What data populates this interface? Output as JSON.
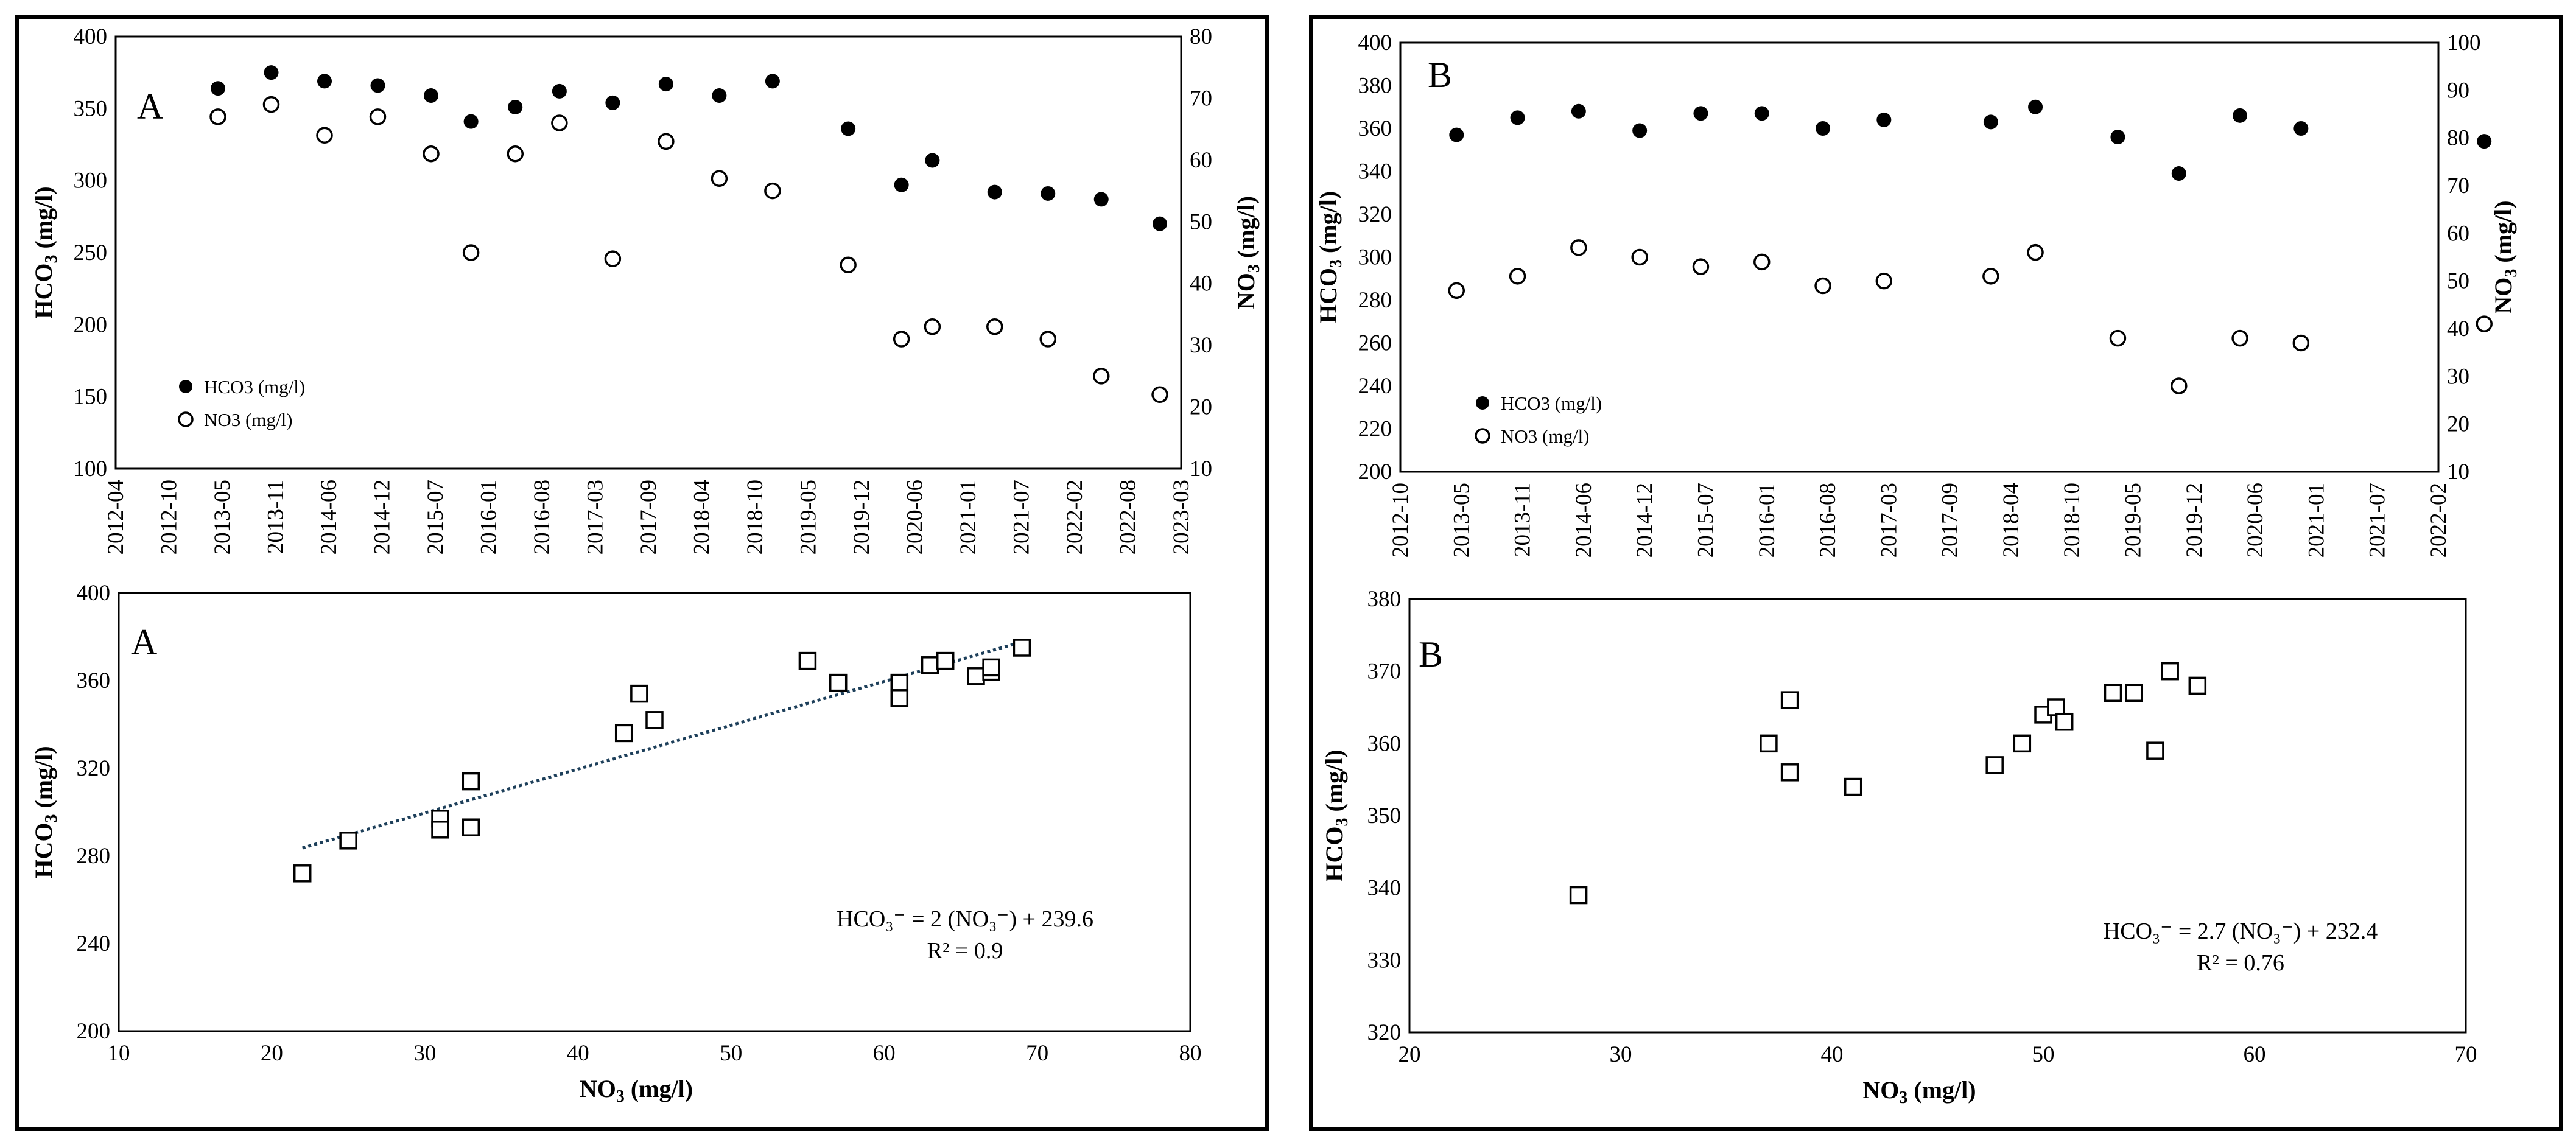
{
  "panels": [
    {
      "id": "A",
      "time_series": {
        "type": "scatter",
        "panel_label": "A",
        "x_labels": [
          "2012-04",
          "2012-10",
          "2013-05",
          "2013-11",
          "2014-06",
          "2014-12",
          "2015-07",
          "2016-01",
          "2016-08",
          "2017-03",
          "2017-09",
          "2018-04",
          "2018-10",
          "2019-05",
          "2019-12",
          "2020-06",
          "2021-01",
          "2021-07",
          "2022-02",
          "2022-08",
          "2023-03"
        ],
        "y_left": {
          "label": "HCO",
          "sub": "3",
          "unit": " (mg/l)",
          "min": 100,
          "max": 400,
          "step": 50
        },
        "y_right": {
          "label": "NO",
          "sub": "3",
          "unit": " (mg/l)",
          "min": 10,
          "max": 80,
          "step": 10
        },
        "series": [
          {
            "name": "HCO3 (mg/l)",
            "axis": "left",
            "marker": "filled",
            "points": [
              [
                1.92,
                364
              ],
              [
                2.92,
                375
              ],
              [
                3.92,
                369
              ],
              [
                4.92,
                366
              ],
              [
                5.92,
                359
              ],
              [
                6.67,
                341
              ],
              [
                7.5,
                351
              ],
              [
                8.33,
                362
              ],
              [
                9.33,
                354
              ],
              [
                10.33,
                367
              ],
              [
                11.33,
                359
              ],
              [
                12.33,
                369
              ],
              [
                13.75,
                336
              ],
              [
                14.75,
                297
              ],
              [
                15.33,
                314
              ],
              [
                16.5,
                292
              ],
              [
                17.5,
                291
              ],
              [
                18.5,
                287
              ],
              [
                19.6,
                270
              ]
            ]
          },
          {
            "name": "NO3 (mg/l)",
            "axis": "right",
            "marker": "open",
            "points": [
              [
                1.92,
                67
              ],
              [
                2.92,
                69
              ],
              [
                3.92,
                64
              ],
              [
                4.92,
                67
              ],
              [
                5.92,
                61
              ],
              [
                6.67,
                45
              ],
              [
                7.5,
                61
              ],
              [
                8.33,
                66
              ],
              [
                9.33,
                44
              ],
              [
                10.33,
                63
              ],
              [
                11.33,
                57
              ],
              [
                12.33,
                55
              ],
              [
                13.75,
                43
              ],
              [
                14.75,
                31
              ],
              [
                15.33,
                33
              ],
              [
                16.5,
                33
              ],
              [
                17.5,
                31
              ],
              [
                18.5,
                25
              ],
              [
                19.6,
                22
              ]
            ]
          }
        ],
        "legend": [
          "HCO3 (mg/l)",
          "NO3 (mg/l)"
        ]
      },
      "regression": {
        "type": "scatter",
        "panel_label": "A",
        "xlabel": "NO",
        "xlabel_sub": "3",
        "xlabel_unit": " (mg/l)",
        "ylabel": "HCO",
        "ylabel_sub": "3",
        "ylabel_unit": " (mg/l)",
        "xlim": [
          10,
          80
        ],
        "x_step": 10,
        "ylim": [
          200,
          400
        ],
        "y_step": 40,
        "points": [
          [
            22,
            272
          ],
          [
            25,
            287
          ],
          [
            31,
            297
          ],
          [
            31,
            292
          ],
          [
            33,
            314
          ],
          [
            33,
            293
          ],
          [
            43,
            336
          ],
          [
            44,
            354
          ],
          [
            45,
            342
          ],
          [
            55,
            369
          ],
          [
            57,
            359
          ],
          [
            61,
            359
          ],
          [
            61,
            352
          ],
          [
            63,
            367
          ],
          [
            64,
            369
          ],
          [
            66,
            362
          ],
          [
            67,
            364
          ],
          [
            67,
            366
          ],
          [
            69,
            375
          ]
        ],
        "trendline": {
          "slope": 2,
          "intercept": 239.6,
          "x_from": 22,
          "x_to": 69
        },
        "equation": "HCO₃⁻ = 2 (NO₃⁻) + 239.6",
        "r2": "R² = 0.9"
      }
    },
    {
      "id": "B",
      "time_series": {
        "type": "scatter",
        "panel_label": "B",
        "x_labels": [
          "2012-10",
          "2013-05",
          "2013-11",
          "2014-06",
          "2014-12",
          "2015-07",
          "2016-01",
          "2016-08",
          "2017-03",
          "2017-09",
          "2018-04",
          "2018-10",
          "2019-05",
          "2019-12",
          "2020-06",
          "2021-01",
          "2021-07",
          "2022-02"
        ],
        "y_left": {
          "label": "HCO",
          "sub": "3",
          "unit": " (mg/l)",
          "min": 200,
          "max": 400,
          "step": 20
        },
        "y_right": {
          "label": "NO",
          "sub": "3",
          "unit": " (mg/l)",
          "min": 10,
          "max": 100,
          "step": 10
        },
        "series": [
          {
            "name": "HCO3 (mg/l)",
            "axis": "left",
            "marker": "filled",
            "points": [
              [
                0.92,
                357
              ],
              [
                1.92,
                365
              ],
              [
                2.92,
                368
              ],
              [
                3.92,
                359
              ],
              [
                4.92,
                367
              ],
              [
                5.92,
                367
              ],
              [
                6.92,
                360
              ],
              [
                7.92,
                364
              ],
              [
                9.67,
                363
              ],
              [
                10.4,
                370
              ],
              [
                11.75,
                356
              ],
              [
                12.75,
                339
              ],
              [
                13.75,
                366
              ],
              [
                14.75,
                360
              ],
              [
                17.75,
                354
              ]
            ]
          },
          {
            "name": "NO3 (mg/l)",
            "axis": "right",
            "marker": "open",
            "points": [
              [
                0.92,
                48
              ],
              [
                1.92,
                51
              ],
              [
                2.92,
                57
              ],
              [
                3.92,
                55
              ],
              [
                4.92,
                53
              ],
              [
                5.92,
                54
              ],
              [
                6.92,
                49
              ],
              [
                7.92,
                50
              ],
              [
                9.67,
                51
              ],
              [
                10.4,
                56
              ],
              [
                11.75,
                38
              ],
              [
                12.75,
                28
              ],
              [
                13.75,
                38
              ],
              [
                14.75,
                37
              ],
              [
                17.75,
                41
              ]
            ]
          }
        ],
        "legend": [
          "HCO3 (mg/l)",
          "NO3 (mg/l)"
        ]
      },
      "regression": {
        "type": "scatter",
        "panel_label": "B",
        "xlabel": "NO",
        "xlabel_sub": "3",
        "xlabel_unit": " (mg/l)",
        "ylabel": "HCO",
        "ylabel_sub": "3",
        "ylabel_unit": " (mg/l)",
        "xlim": [
          20,
          70
        ],
        "x_step": 10,
        "ylim": [
          320,
          380
        ],
        "y_step": 10,
        "points": [
          [
            28,
            339
          ],
          [
            37,
            360
          ],
          [
            38,
            366
          ],
          [
            38,
            356
          ],
          [
            41,
            354
          ],
          [
            47.7,
            357
          ],
          [
            49,
            360
          ],
          [
            50,
            364
          ],
          [
            50.6,
            365
          ],
          [
            51,
            363
          ],
          [
            53.3,
            367
          ],
          [
            54.3,
            367
          ],
          [
            55.3,
            359
          ],
          [
            56,
            370
          ],
          [
            57.3,
            368
          ]
        ],
        "trendline": null,
        "equation": "HCO₃⁻ = 2.7 (NO₃⁻) + 232.4",
        "r2": "R² = 0.76"
      }
    }
  ]
}
